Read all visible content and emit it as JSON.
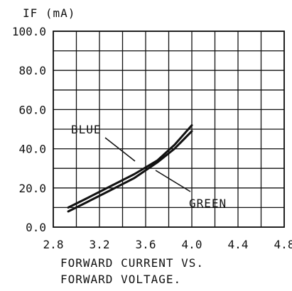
{
  "chart_data": {
    "type": "line",
    "ylabel": "IF (mA)",
    "xlabel_lines": [
      "FORWARD CURRENT VS.",
      "FORWARD VOLTAGE."
    ],
    "xlim": [
      2.8,
      4.8
    ],
    "ylim": [
      0,
      100
    ],
    "x_ticks": [
      "2.8",
      "3.2",
      "3.6",
      "4.0",
      "4.4",
      "4.8"
    ],
    "y_ticks": [
      "0.0",
      "20.0",
      "40.0",
      "60.0",
      "80.0",
      "100.0"
    ],
    "grid": true,
    "series": [
      {
        "name": "BLUE",
        "x": [
          2.93,
          3.1,
          3.3,
          3.5,
          3.7,
          3.85,
          4.0
        ],
        "y": [
          10,
          15,
          21,
          27,
          34,
          42,
          52
        ]
      },
      {
        "name": "GREEN",
        "x": [
          2.93,
          3.1,
          3.3,
          3.5,
          3.7,
          3.85,
          4.0
        ],
        "y": [
          8,
          13,
          19,
          25,
          33,
          40,
          49
        ]
      }
    ],
    "annotations": [
      {
        "text": "BLUE",
        "series": "BLUE"
      },
      {
        "text": "GREEN",
        "series": "GREEN"
      }
    ],
    "line_color": "#111111"
  }
}
